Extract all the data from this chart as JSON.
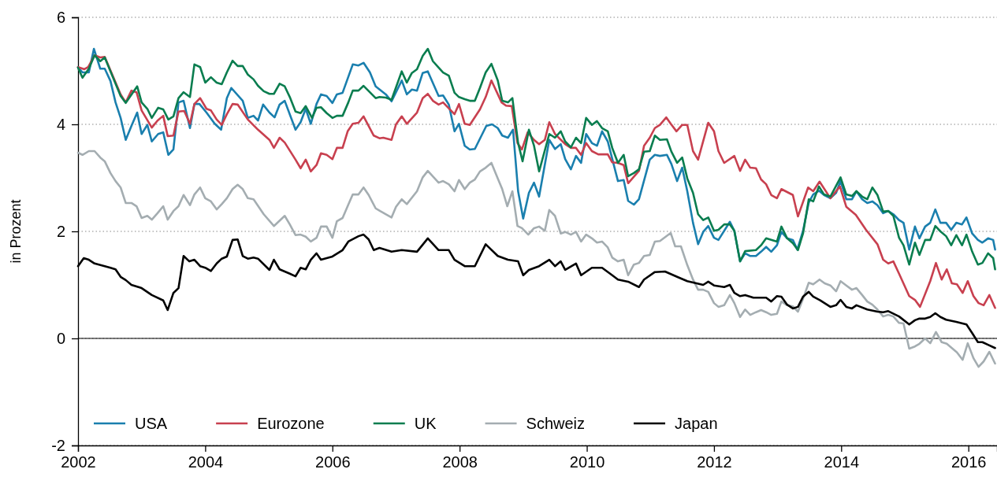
{
  "chart_data": {
    "type": "line",
    "ylabel": "in Prozent",
    "xlim": [
      2002,
      2016.45
    ],
    "xticks": [
      2002,
      2004,
      2006,
      2008,
      2010,
      2012,
      2014,
      2016
    ],
    "ylim": [
      -2,
      6
    ],
    "yticks": [
      -2,
      0,
      2,
      4,
      6
    ],
    "grid": "y",
    "legend": "bottom",
    "ref_lines": [
      {
        "axis": "y",
        "value": 0,
        "color": "#000000"
      }
    ],
    "series": [
      {
        "name": "USA",
        "color": "#1a7fae",
        "x": [
          2002.0,
          2002.07,
          2002.17,
          2002.25,
          2002.35,
          2002.42,
          2002.51,
          2002.59,
          2002.67,
          2002.75,
          2002.84,
          2002.93,
          2003.0,
          2003.09,
          2003.16,
          2003.26,
          2003.34,
          2003.42,
          2003.5,
          2003.58,
          2003.66,
          2003.76,
          2003.83,
          2003.91,
          2004.02,
          2004.15,
          2004.25,
          2004.34,
          2004.41,
          2004.59,
          2004.67,
          2004.76,
          2004.83,
          2004.91,
          2005.01,
          2005.09,
          2005.17,
          2005.25,
          2005.42,
          2005.5,
          2005.58,
          2005.66,
          2005.75,
          2005.82,
          2005.91,
          2006.0,
          2006.07,
          2006.16,
          2006.32,
          2006.41,
          2006.49,
          2006.59,
          2006.68,
          2006.84,
          2006.93,
          2007.09,
          2007.17,
          2007.25,
          2007.33,
          2007.42,
          2007.5,
          2007.67,
          2007.74,
          2007.83,
          2007.92,
          2007.99,
          2008.08,
          2008.16,
          2008.24,
          2008.42,
          2008.51,
          2008.6,
          2008.67,
          2008.76,
          2008.84,
          2008.92,
          2009.0,
          2009.09,
          2009.17,
          2009.25,
          2009.41,
          2009.5,
          2009.59,
          2009.66,
          2009.75,
          2009.83,
          2009.91,
          2009.99,
          2010.08,
          2010.16,
          2010.24,
          2010.33,
          2010.49,
          2010.58,
          2010.65,
          2010.74,
          2010.82,
          2010.99,
          2011.07,
          2011.15,
          2011.26,
          2011.33,
          2011.42,
          2011.5,
          2011.58,
          2011.67,
          2011.75,
          2011.83,
          2011.91,
          2012.0,
          2012.07,
          2012.25,
          2012.32,
          2012.41,
          2012.49,
          2012.57,
          2012.66,
          2012.74,
          2012.82,
          2012.9,
          2012.99,
          2013.06,
          2013.15,
          2013.24,
          2013.31,
          2013.4,
          2013.49,
          2013.56,
          2013.65,
          2013.73,
          2013.83,
          2013.92,
          2013.99,
          2014.08,
          2014.17,
          2014.24,
          2014.33,
          2014.41,
          2014.49,
          2014.57,
          2014.66,
          2014.74,
          2014.82,
          2014.91,
          2014.98,
          2015.07,
          2015.16,
          2015.23,
          2015.32,
          2015.4,
          2015.48,
          2015.56,
          2015.65,
          2015.73,
          2015.81,
          2015.9,
          2015.97,
          2016.06,
          2016.15,
          2016.22,
          2016.31,
          2016.39,
          2016.42
        ],
        "values": [
          5.07,
          4.97,
          4.97,
          5.41,
          5.04,
          5.04,
          4.81,
          4.41,
          4.12,
          3.71,
          3.97,
          4.22,
          3.82,
          3.99,
          3.68,
          3.82,
          3.85,
          3.43,
          3.53,
          4.41,
          4.44,
          3.93,
          4.38,
          4.38,
          4.22,
          4.01,
          3.9,
          4.49,
          4.68,
          4.44,
          4.12,
          4.16,
          4.07,
          4.37,
          4.22,
          4.13,
          4.37,
          4.44,
          3.9,
          4.04,
          4.29,
          4.01,
          4.38,
          4.56,
          4.53,
          4.4,
          4.56,
          4.59,
          5.12,
          5.1,
          5.15,
          4.97,
          4.71,
          4.56,
          4.43,
          4.82,
          4.56,
          4.65,
          4.63,
          4.96,
          4.99,
          4.53,
          4.54,
          4.37,
          3.87,
          4.01,
          3.6,
          3.53,
          3.54,
          3.97,
          4.0,
          3.93,
          3.79,
          3.75,
          3.9,
          2.75,
          2.24,
          2.72,
          2.91,
          2.65,
          3.71,
          3.54,
          3.63,
          3.35,
          3.16,
          3.41,
          3.28,
          3.82,
          3.65,
          3.6,
          3.87,
          3.68,
          2.94,
          2.96,
          2.57,
          2.5,
          2.6,
          3.34,
          3.43,
          3.41,
          3.43,
          3.26,
          2.94,
          3.19,
          2.75,
          2.16,
          1.76,
          1.99,
          2.1,
          1.88,
          1.84,
          2.18,
          2.01,
          1.44,
          1.59,
          1.54,
          1.54,
          1.62,
          1.71,
          1.62,
          1.74,
          1.99,
          1.87,
          1.84,
          1.66,
          2.01,
          2.54,
          2.69,
          2.76,
          2.68,
          2.62,
          2.72,
          2.94,
          2.6,
          2.6,
          2.75,
          2.6,
          2.53,
          2.56,
          2.49,
          2.34,
          2.38,
          2.32,
          2.21,
          2.16,
          1.66,
          2.09,
          1.87,
          2.09,
          2.16,
          2.41,
          2.16,
          2.16,
          2.03,
          2.16,
          2.13,
          2.26,
          1.96,
          1.84,
          1.79,
          1.87,
          1.84,
          1.66
        ]
      },
      {
        "name": "Eurozone",
        "color": "#c8404f",
        "x": [
          2002.0,
          2002.1,
          2002.16,
          2002.26,
          2002.35,
          2002.42,
          2002.67,
          2002.75,
          2002.84,
          2002.92,
          2003.0,
          2003.16,
          2003.25,
          2003.34,
          2003.41,
          2003.5,
          2003.58,
          2003.67,
          2003.76,
          2003.83,
          2003.92,
          2004.02,
          2004.09,
          2004.18,
          2004.26,
          2004.34,
          2004.43,
          2004.51,
          2004.67,
          2004.83,
          2005.01,
          2005.08,
          2005.17,
          2005.25,
          2005.42,
          2005.5,
          2005.58,
          2005.66,
          2005.75,
          2005.82,
          2005.91,
          2006.0,
          2006.07,
          2006.16,
          2006.24,
          2006.32,
          2006.41,
          2006.49,
          2006.65,
          2006.74,
          2006.8,
          2006.93,
          2007.0,
          2007.09,
          2007.17,
          2007.33,
          2007.42,
          2007.5,
          2007.58,
          2007.67,
          2007.74,
          2007.92,
          2007.99,
          2008.08,
          2008.16,
          2008.32,
          2008.41,
          2008.5,
          2008.66,
          2008.73,
          2008.82,
          2008.91,
          2008.98,
          2009.07,
          2009.17,
          2009.25,
          2009.34,
          2009.41,
          2009.5,
          2009.66,
          2009.75,
          2009.83,
          2009.91,
          2009.99,
          2010.08,
          2010.18,
          2010.33,
          2010.4,
          2010.49,
          2010.58,
          2010.65,
          2010.82,
          2010.9,
          2010.99,
          2011.07,
          2011.15,
          2011.25,
          2011.32,
          2011.41,
          2011.5,
          2011.58,
          2011.67,
          2011.75,
          2011.91,
          2012.0,
          2012.07,
          2012.16,
          2012.32,
          2012.41,
          2012.49,
          2012.57,
          2012.66,
          2012.74,
          2012.82,
          2012.9,
          2012.99,
          2013.06,
          2013.24,
          2013.32,
          2013.48,
          2013.56,
          2013.66,
          2013.83,
          2013.98,
          2014.08,
          2014.23,
          2014.39,
          2014.57,
          2014.66,
          2014.74,
          2014.82,
          2014.91,
          2015.07,
          2015.16,
          2015.24,
          2015.4,
          2015.49,
          2015.58,
          2015.66,
          2015.74,
          2015.82,
          2015.91,
          2015.99,
          2016.08,
          2016.16,
          2016.24,
          2016.33,
          2016.42
        ],
        "values": [
          5.07,
          5.03,
          5.07,
          5.29,
          5.25,
          5.26,
          4.56,
          4.41,
          4.63,
          4.6,
          4.26,
          3.94,
          4.07,
          4.16,
          3.78,
          3.79,
          4.24,
          4.25,
          4.01,
          4.38,
          4.49,
          4.29,
          4.26,
          4.09,
          3.99,
          4.19,
          4.38,
          4.37,
          4.09,
          3.9,
          3.71,
          3.56,
          3.75,
          3.66,
          3.34,
          3.18,
          3.34,
          3.12,
          3.24,
          3.46,
          3.43,
          3.35,
          3.56,
          3.56,
          3.87,
          4.01,
          4.03,
          4.15,
          3.79,
          3.74,
          3.75,
          3.71,
          4.0,
          4.15,
          4.01,
          4.22,
          4.49,
          4.57,
          4.44,
          4.37,
          4.41,
          4.19,
          4.38,
          4.01,
          3.99,
          4.28,
          4.51,
          4.82,
          4.41,
          4.35,
          4.34,
          3.65,
          3.53,
          3.85,
          3.71,
          3.63,
          3.71,
          4.04,
          3.82,
          3.63,
          3.56,
          3.56,
          3.43,
          3.65,
          3.5,
          3.44,
          3.44,
          3.29,
          3.28,
          3.24,
          2.9,
          3.13,
          3.6,
          3.75,
          3.93,
          3.99,
          4.13,
          4.01,
          3.87,
          3.99,
          3.99,
          3.5,
          3.34,
          4.03,
          3.87,
          3.5,
          3.28,
          3.41,
          3.13,
          3.34,
          3.19,
          3.18,
          2.97,
          2.88,
          2.68,
          2.62,
          2.79,
          2.68,
          2.28,
          2.82,
          2.75,
          2.93,
          2.62,
          2.84,
          2.46,
          2.31,
          2.03,
          1.76,
          1.47,
          1.4,
          1.44,
          1.21,
          0.79,
          0.72,
          0.59,
          1.07,
          1.41,
          1.1,
          1.29,
          1.03,
          1.01,
          0.85,
          1.07,
          0.79,
          0.66,
          0.62,
          0.81,
          0.57
        ]
      },
      {
        "name": "UK",
        "color": "#0a7d4f",
        "x": [
          2002.0,
          2002.07,
          2002.17,
          2002.26,
          2002.35,
          2002.42,
          2002.67,
          2002.75,
          2002.93,
          2003.0,
          2003.09,
          2003.16,
          2003.26,
          2003.34,
          2003.42,
          2003.5,
          2003.58,
          2003.66,
          2003.76,
          2003.83,
          2003.92,
          2004.0,
          2004.09,
          2004.18,
          2004.26,
          2004.34,
          2004.43,
          2004.51,
          2004.59,
          2004.67,
          2004.76,
          2004.83,
          2004.92,
          2005.01,
          2005.08,
          2005.17,
          2005.25,
          2005.33,
          2005.42,
          2005.5,
          2005.58,
          2005.68,
          2005.75,
          2005.82,
          2005.91,
          2006.0,
          2006.07,
          2006.16,
          2006.25,
          2006.32,
          2006.41,
          2006.49,
          2006.68,
          2006.74,
          2006.84,
          2006.93,
          2007.09,
          2007.17,
          2007.25,
          2007.33,
          2007.42,
          2007.5,
          2007.58,
          2007.67,
          2007.74,
          2007.83,
          2007.92,
          2007.99,
          2008.08,
          2008.16,
          2008.24,
          2008.32,
          2008.41,
          2008.5,
          2008.6,
          2008.67,
          2008.76,
          2008.83,
          2008.92,
          2008.99,
          2009.09,
          2009.17,
          2009.25,
          2009.41,
          2009.5,
          2009.59,
          2009.66,
          2009.75,
          2009.83,
          2009.91,
          2009.99,
          2010.08,
          2010.16,
          2010.24,
          2010.33,
          2010.4,
          2010.49,
          2010.58,
          2010.65,
          2010.74,
          2010.82,
          2010.9,
          2010.99,
          2011.07,
          2011.15,
          2011.26,
          2011.33,
          2011.42,
          2011.5,
          2011.58,
          2011.67,
          2011.75,
          2011.83,
          2011.91,
          2012.0,
          2012.07,
          2012.16,
          2012.25,
          2012.32,
          2012.41,
          2012.49,
          2012.66,
          2012.74,
          2012.82,
          2012.99,
          2013.06,
          2013.15,
          2013.24,
          2013.32,
          2013.4,
          2013.49,
          2013.56,
          2013.65,
          2013.73,
          2013.83,
          2013.99,
          2014.08,
          2014.17,
          2014.24,
          2014.33,
          2014.41,
          2014.49,
          2014.57,
          2014.66,
          2014.74,
          2014.82,
          2014.91,
          2014.98,
          2015.07,
          2015.16,
          2015.23,
          2015.32,
          2015.4,
          2015.48,
          2015.56,
          2015.65,
          2015.73,
          2015.81,
          2015.9,
          2015.97,
          2016.06,
          2016.15,
          2016.22,
          2016.31,
          2016.39,
          2016.42
        ],
        "values": [
          5.06,
          4.87,
          5.04,
          5.29,
          5.18,
          5.25,
          4.53,
          4.4,
          4.71,
          4.41,
          4.29,
          4.12,
          4.31,
          4.28,
          4.09,
          4.15,
          4.49,
          4.6,
          4.51,
          5.12,
          5.07,
          4.78,
          4.88,
          4.78,
          4.75,
          4.97,
          5.19,
          5.09,
          5.09,
          4.93,
          4.84,
          4.72,
          4.62,
          4.57,
          4.57,
          4.76,
          4.71,
          4.51,
          4.24,
          4.21,
          4.34,
          4.12,
          4.31,
          4.32,
          4.21,
          4.12,
          4.16,
          4.16,
          4.41,
          4.63,
          4.63,
          4.72,
          4.49,
          4.51,
          4.5,
          4.46,
          4.99,
          4.78,
          4.96,
          5.03,
          5.28,
          5.41,
          5.18,
          5.06,
          4.97,
          4.91,
          4.59,
          4.51,
          4.47,
          4.44,
          4.44,
          4.68,
          4.97,
          5.13,
          4.82,
          4.44,
          4.41,
          4.49,
          3.65,
          3.31,
          3.9,
          3.6,
          3.12,
          3.82,
          3.75,
          3.87,
          3.68,
          3.57,
          3.75,
          3.65,
          4.12,
          3.99,
          4.06,
          3.93,
          3.87,
          3.56,
          3.28,
          3.43,
          3.03,
          3.09,
          3.16,
          3.49,
          3.5,
          3.79,
          3.71,
          3.72,
          3.49,
          3.28,
          3.38,
          2.99,
          2.72,
          2.32,
          2.21,
          2.26,
          2.01,
          2.03,
          2.13,
          2.13,
          2.01,
          1.44,
          1.63,
          1.65,
          1.74,
          1.87,
          1.81,
          2.09,
          1.87,
          1.78,
          1.65,
          1.96,
          2.6,
          2.56,
          2.84,
          2.69,
          2.65,
          3.01,
          2.69,
          2.66,
          2.75,
          2.65,
          2.6,
          2.82,
          2.68,
          2.37,
          2.38,
          2.29,
          1.88,
          1.74,
          1.38,
          1.79,
          1.56,
          1.84,
          1.84,
          2.1,
          2.0,
          1.91,
          1.74,
          1.93,
          1.74,
          1.94,
          1.62,
          1.38,
          1.41,
          1.59,
          1.5,
          1.29
        ]
      },
      {
        "name": "Schweiz",
        "color": "#a4adb1",
        "x": [
          2002.0,
          2002.07,
          2002.17,
          2002.26,
          2002.35,
          2002.42,
          2002.51,
          2002.59,
          2002.67,
          2002.75,
          2002.84,
          2002.92,
          2003.0,
          2003.09,
          2003.16,
          2003.25,
          2003.34,
          2003.41,
          2003.5,
          2003.58,
          2003.66,
          2003.76,
          2003.83,
          2003.92,
          2004.0,
          2004.09,
          2004.18,
          2004.26,
          2004.34,
          2004.43,
          2004.51,
          2004.59,
          2004.67,
          2004.76,
          2004.92,
          2005.08,
          2005.25,
          2005.33,
          2005.42,
          2005.5,
          2005.58,
          2005.66,
          2005.75,
          2005.82,
          2005.91,
          2006.0,
          2006.07,
          2006.16,
          2006.25,
          2006.32,
          2006.41,
          2006.49,
          2006.57,
          2006.68,
          2006.75,
          2006.93,
          2007.0,
          2007.09,
          2007.17,
          2007.33,
          2007.42,
          2007.5,
          2007.67,
          2007.74,
          2007.83,
          2007.92,
          2007.99,
          2008.08,
          2008.16,
          2008.24,
          2008.32,
          2008.41,
          2008.5,
          2008.6,
          2008.67,
          2008.75,
          2008.83,
          2008.91,
          2008.98,
          2009.08,
          2009.17,
          2009.25,
          2009.34,
          2009.41,
          2009.5,
          2009.59,
          2009.66,
          2009.75,
          2009.83,
          2009.91,
          2009.99,
          2010.08,
          2010.16,
          2010.24,
          2010.33,
          2010.4,
          2010.49,
          2010.58,
          2010.65,
          2010.74,
          2010.82,
          2010.9,
          2010.99,
          2011.07,
          2011.15,
          2011.32,
          2011.39,
          2011.48,
          2011.58,
          2011.67,
          2011.75,
          2011.83,
          2011.91,
          2012.0,
          2012.07,
          2012.16,
          2012.25,
          2012.32,
          2012.41,
          2012.49,
          2012.57,
          2012.66,
          2012.74,
          2012.82,
          2012.9,
          2012.99,
          2013.06,
          2013.15,
          2013.24,
          2013.32,
          2013.4,
          2013.49,
          2013.56,
          2013.66,
          2013.74,
          2013.83,
          2013.92,
          2013.99,
          2014.08,
          2014.17,
          2014.24,
          2014.33,
          2014.41,
          2014.49,
          2014.57,
          2014.66,
          2014.74,
          2014.82,
          2014.91,
          2014.98,
          2015.07,
          2015.16,
          2015.23,
          2015.32,
          2015.4,
          2015.49,
          2015.58,
          2015.66,
          2015.74,
          2015.82,
          2015.91,
          2015.99,
          2016.08,
          2016.16,
          2016.24,
          2016.33,
          2016.42
        ],
        "values": [
          3.47,
          3.43,
          3.5,
          3.5,
          3.38,
          3.31,
          3.09,
          2.94,
          2.82,
          2.53,
          2.53,
          2.47,
          2.25,
          2.29,
          2.22,
          2.34,
          2.47,
          2.22,
          2.38,
          2.47,
          2.68,
          2.49,
          2.69,
          2.82,
          2.62,
          2.56,
          2.41,
          2.51,
          2.62,
          2.79,
          2.87,
          2.79,
          2.62,
          2.6,
          2.32,
          2.1,
          2.29,
          2.13,
          1.93,
          1.94,
          1.9,
          1.81,
          1.88,
          2.09,
          2.09,
          1.88,
          2.19,
          2.25,
          2.5,
          2.69,
          2.69,
          2.82,
          2.68,
          2.43,
          2.38,
          2.26,
          2.46,
          2.6,
          2.51,
          2.75,
          3.01,
          3.13,
          2.91,
          2.94,
          2.88,
          2.75,
          2.96,
          2.79,
          2.91,
          2.97,
          3.12,
          3.19,
          3.28,
          2.99,
          2.79,
          2.47,
          2.75,
          2.1,
          2.06,
          1.94,
          2.06,
          2.09,
          2.01,
          2.4,
          2.29,
          1.96,
          1.99,
          1.94,
          1.99,
          1.81,
          1.94,
          1.87,
          1.79,
          1.81,
          1.7,
          1.51,
          1.44,
          1.47,
          1.18,
          1.38,
          1.41,
          1.54,
          1.56,
          1.81,
          1.82,
          1.97,
          1.72,
          1.72,
          1.37,
          1.1,
          0.91,
          0.91,
          0.87,
          0.66,
          0.59,
          0.62,
          0.81,
          0.66,
          0.4,
          0.54,
          0.44,
          0.49,
          0.53,
          0.49,
          0.44,
          0.46,
          0.69,
          0.62,
          0.6,
          0.5,
          0.74,
          1.04,
          1.01,
          1.1,
          1.03,
          0.99,
          0.88,
          1.07,
          0.99,
          0.91,
          0.94,
          0.81,
          0.69,
          0.63,
          0.54,
          0.41,
          0.44,
          0.41,
          0.29,
          0.28,
          -0.19,
          -0.15,
          -0.1,
          0.0,
          -0.09,
          0.12,
          -0.07,
          -0.1,
          -0.18,
          -0.26,
          -0.4,
          -0.09,
          -0.37,
          -0.53,
          -0.43,
          -0.25,
          -0.47
        ]
      },
      {
        "name": "Japan",
        "color": "#000000",
        "x": [
          2002.0,
          2002.09,
          2002.17,
          2002.26,
          2002.42,
          2002.51,
          2002.59,
          2002.67,
          2002.75,
          2002.84,
          2003.0,
          2003.16,
          2003.34,
          2003.41,
          2003.5,
          2003.58,
          2003.66,
          2003.75,
          2003.83,
          2003.92,
          2004.0,
          2004.09,
          2004.18,
          2004.26,
          2004.34,
          2004.43,
          2004.51,
          2004.59,
          2004.67,
          2004.76,
          2004.83,
          2005.01,
          2005.08,
          2005.17,
          2005.33,
          2005.42,
          2005.5,
          2005.58,
          2005.66,
          2005.75,
          2005.82,
          2006.0,
          2006.16,
          2006.25,
          2006.41,
          2006.49,
          2006.57,
          2006.65,
          2006.74,
          2006.93,
          2007.09,
          2007.33,
          2007.5,
          2007.67,
          2007.83,
          2007.92,
          2008.08,
          2008.24,
          2008.41,
          2008.6,
          2008.76,
          2008.92,
          2009.0,
          2009.09,
          2009.25,
          2009.41,
          2009.5,
          2009.59,
          2009.66,
          2009.83,
          2009.91,
          2010.08,
          2010.24,
          2010.4,
          2010.49,
          2010.65,
          2010.82,
          2010.9,
          2011.07,
          2011.23,
          2011.42,
          2011.58,
          2011.83,
          2011.91,
          2012.0,
          2012.16,
          2012.25,
          2012.32,
          2012.41,
          2012.49,
          2012.62,
          2012.82,
          2012.9,
          2012.99,
          2013.06,
          2013.15,
          2013.24,
          2013.32,
          2013.4,
          2013.49,
          2013.56,
          2013.67,
          2013.83,
          2013.92,
          2013.99,
          2014.08,
          2014.17,
          2014.24,
          2014.41,
          2014.57,
          2014.66,
          2014.74,
          2014.91,
          2015.07,
          2015.16,
          2015.23,
          2015.32,
          2015.4,
          2015.48,
          2015.56,
          2015.65,
          2015.81,
          2015.97,
          2016.06,
          2016.15,
          2016.22,
          2016.31,
          2016.42
        ],
        "values": [
          1.35,
          1.5,
          1.47,
          1.4,
          1.35,
          1.32,
          1.29,
          1.15,
          1.09,
          1.0,
          0.94,
          0.81,
          0.71,
          0.53,
          0.85,
          0.94,
          1.54,
          1.44,
          1.47,
          1.35,
          1.32,
          1.26,
          1.4,
          1.49,
          1.53,
          1.84,
          1.85,
          1.54,
          1.49,
          1.51,
          1.49,
          1.28,
          1.47,
          1.29,
          1.21,
          1.16,
          1.32,
          1.29,
          1.47,
          1.59,
          1.47,
          1.53,
          1.65,
          1.81,
          1.91,
          1.94,
          1.85,
          1.65,
          1.69,
          1.62,
          1.65,
          1.62,
          1.87,
          1.65,
          1.65,
          1.47,
          1.35,
          1.35,
          1.76,
          1.54,
          1.47,
          1.44,
          1.18,
          1.28,
          1.35,
          1.47,
          1.35,
          1.44,
          1.28,
          1.4,
          1.18,
          1.32,
          1.32,
          1.18,
          1.1,
          1.06,
          0.96,
          1.1,
          1.24,
          1.25,
          1.15,
          1.07,
          1.0,
          1.06,
          0.99,
          0.96,
          1.0,
          0.85,
          0.79,
          0.81,
          0.76,
          0.76,
          0.69,
          0.79,
          0.78,
          0.63,
          0.56,
          0.59,
          0.78,
          0.87,
          0.78,
          0.71,
          0.59,
          0.62,
          0.72,
          0.59,
          0.56,
          0.62,
          0.54,
          0.5,
          0.49,
          0.51,
          0.41,
          0.26,
          0.34,
          0.37,
          0.37,
          0.4,
          0.47,
          0.4,
          0.35,
          0.31,
          0.26,
          0.1,
          -0.07,
          -0.07,
          -0.12,
          -0.18
        ]
      }
    ]
  }
}
